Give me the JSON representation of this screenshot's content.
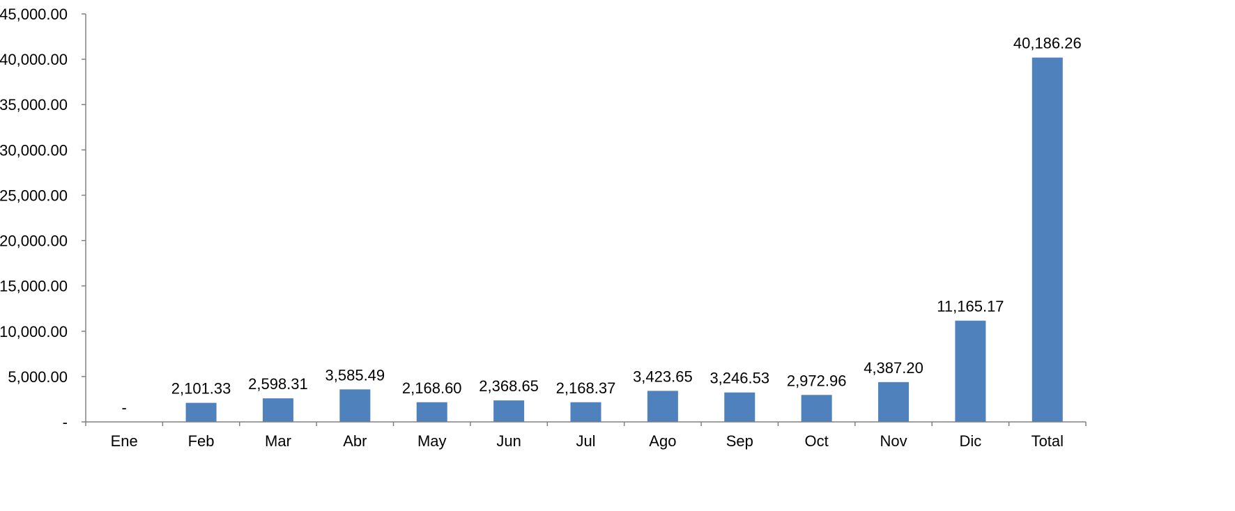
{
  "chart_data": {
    "type": "bar",
    "categories": [
      "Ene",
      "Feb",
      "Mar",
      "Abr",
      "May",
      "Jun",
      "Jul",
      "Ago",
      "Sep",
      "Oct",
      "Nov",
      "Dic",
      "Total"
    ],
    "values": [
      0,
      2101.33,
      2598.31,
      3585.49,
      2168.6,
      2368.65,
      2168.37,
      3423.65,
      3246.53,
      2972.96,
      4387.2,
      11165.17,
      40186.26
    ],
    "data_labels": [
      "-",
      "2,101.33",
      "2,598.31",
      "3,585.49",
      "2,168.60",
      "2,368.65",
      "2,168.37",
      "3,423.65",
      "3,246.53",
      "2,972.96",
      "4,387.20",
      "11,165.17",
      "40,186.26"
    ],
    "y_ticks": [
      0,
      5000,
      10000,
      15000,
      20000,
      25000,
      30000,
      35000,
      40000,
      45000
    ],
    "y_tick_labels": [
      "-",
      "5,000.00",
      "10,000.00",
      "15,000.00",
      "20,000.00",
      "25,000.00",
      "30,000.00",
      "35,000.00",
      "40,000.00",
      "45,000.00"
    ],
    "ylim": [
      0,
      45000
    ],
    "title": "",
    "xlabel": "",
    "ylabel": "",
    "grid": false,
    "legend": "none",
    "bar_color": "#4f81bd",
    "axis_color": "#808080"
  }
}
